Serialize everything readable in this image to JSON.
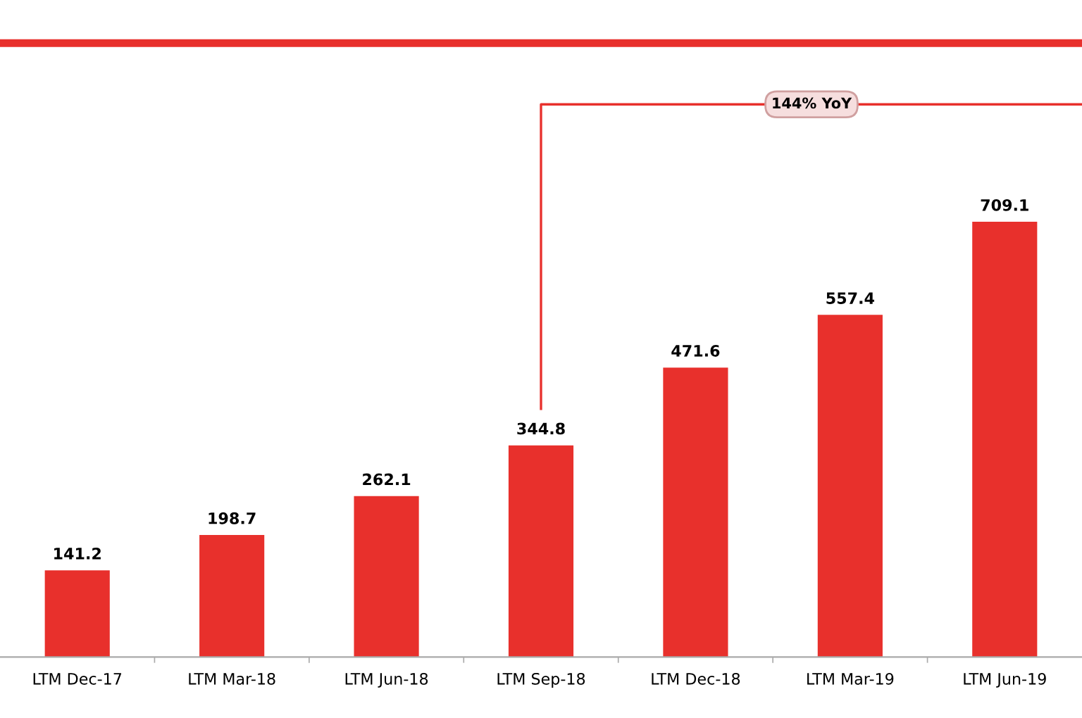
{
  "chart_data": {
    "type": "bar",
    "categories": [
      "LTM Dec-17",
      "LTM Mar-18",
      "LTM Jun-18",
      "LTM Sep-18",
      "LTM Dec-18",
      "LTM Mar-19",
      "LTM Jun-19"
    ],
    "values": [
      141.2,
      198.7,
      262.1,
      344.8,
      471.6,
      557.4,
      709.1
    ],
    "color": "#e8302c",
    "data_labels": true,
    "annotations": [
      "144% YoY"
    ]
  }
}
